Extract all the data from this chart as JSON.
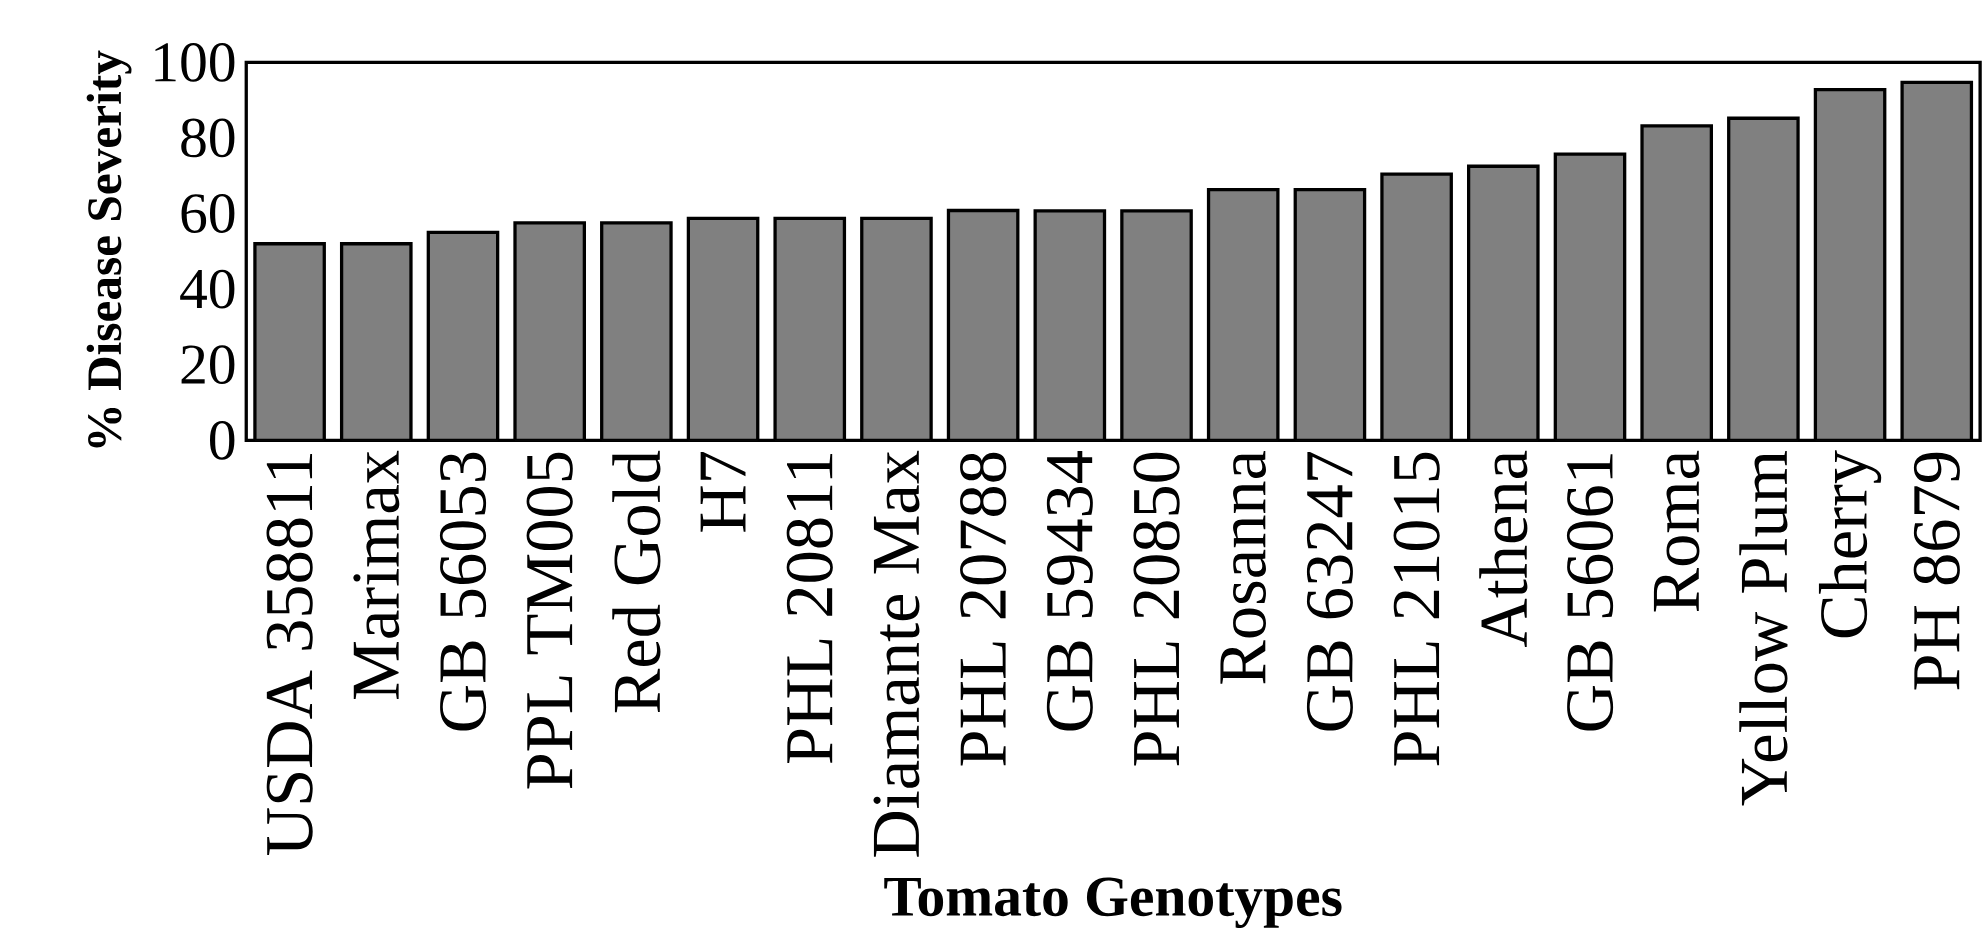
{
  "chart_data": {
    "type": "bar",
    "xlabel": "Tomato Genotypes",
    "ylabel": "% Disease  Severity",
    "categories": [
      "USDA 358811",
      "Marimax",
      "GB 56053",
      "PPL TM005",
      "Red Gold",
      "H7",
      "PHL 20811",
      "Diamante Max",
      "PHL 20788",
      "GB 59434",
      "PHL 20850",
      "Rosanna",
      "GB 63247",
      "PHL 21015",
      "Athena",
      "GB 56061",
      "Roma",
      "Yellow Plum",
      "Cherry",
      "PH 8679"
    ],
    "values": [
      52,
      52,
      55,
      57.5,
      57.5,
      58.7,
      58.7,
      58.7,
      60.8,
      60.7,
      60.7,
      66.3,
      66.3,
      70.4,
      72.5,
      75.7,
      83.2,
      85.2,
      92.8,
      94.7
    ],
    "color": "#808080",
    "ylim": [
      0,
      100
    ],
    "yticks": [
      0,
      20,
      40,
      60,
      80,
      100
    ],
    "grid": false
  }
}
